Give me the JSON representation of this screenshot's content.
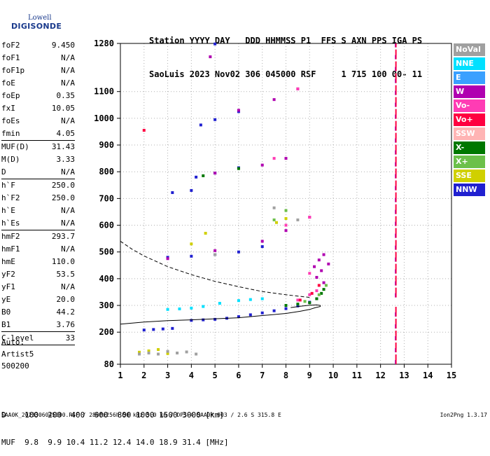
{
  "logo": {
    "line1": "Lowell",
    "line2": "DIGISONDE"
  },
  "header": {
    "line1": "Station YYYY DAY   DDD HHMMSS P1  FFS S AXN PPS IGA PS",
    "line2": "SaoLuis 2023 Nov02 306 045000 RSF     1 715 100 00- 11"
  },
  "params": [
    {
      "name": "foF2",
      "value": "9.450"
    },
    {
      "name": "foF1",
      "value": "N/A"
    },
    {
      "name": "foF1p",
      "value": "N/A"
    },
    {
      "name": "foE",
      "value": "N/A"
    },
    {
      "name": "foEp",
      "value": "0.35"
    },
    {
      "name": "fxI",
      "value": "10.05"
    },
    {
      "name": "foEs",
      "value": "N/A"
    },
    {
      "name": "fmin",
      "value": "4.05"
    },
    {
      "name": "MUF(D)",
      "value": "31.43"
    },
    {
      "name": "M(D)",
      "value": "3.33"
    },
    {
      "name": "D",
      "value": "N/A"
    },
    {
      "name": "h`F",
      "value": "250.0"
    },
    {
      "name": "h`F2",
      "value": "250.0"
    },
    {
      "name": "h`E",
      "value": "N/A"
    },
    {
      "name": "h`Es",
      "value": "N/A"
    },
    {
      "name": "hmF2",
      "value": "293.7"
    },
    {
      "name": "hmF1",
      "value": "N/A"
    },
    {
      "name": "hmE",
      "value": "110.0"
    },
    {
      "name": "yF2",
      "value": "53.5"
    },
    {
      "name": "yF1",
      "value": "N/A"
    },
    {
      "name": "yE",
      "value": "20.0"
    },
    {
      "name": "B0",
      "value": "44.2"
    },
    {
      "name": "B1",
      "value": "3.76"
    },
    {
      "name": "C-level",
      "value": "33"
    }
  ],
  "artist": {
    "line1": "Auto:",
    "line2": "Artist5",
    "line3": "500200"
  },
  "muf_table": {
    "line1": "D    100  200  400  600  800 1000 1500 3000 [km]",
    "line2": "MUF  9.8  9.9 10.4 11.2 12.4 14.0 18.9 31.4 [MHz]"
  },
  "footer": {
    "left": "SAA0K_2023306045000.RSF / 280fx256h 50 kHz 5.0 km / DPS-4 SAA0K 903 / 2.6 S 315.8 E",
    "right": "Ion2Png 1.3.17"
  },
  "legend": [
    {
      "label": "NoVal",
      "color": "#a0a0a0"
    },
    {
      "label": "NNE",
      "color": "#00e0ff"
    },
    {
      "label": "E",
      "color": "#3aa0ff"
    },
    {
      "label": "W",
      "color": "#b000b0"
    },
    {
      "label": "Vo-",
      "color": "#ff3cb4"
    },
    {
      "label": "Vo+",
      "color": "#ff0040"
    },
    {
      "label": "SSW",
      "color": "#ffb4b4"
    },
    {
      "label": "X-",
      "color": "#007800"
    },
    {
      "label": "X+",
      "color": "#6cc04a"
    },
    {
      "label": "SSE",
      "color": "#d0d000"
    },
    {
      "label": "NNW",
      "color": "#2020d0"
    }
  ],
  "chart_data": {
    "type": "scatter",
    "x_ticks": [
      "1",
      "2",
      "3",
      "4",
      "5",
      "6",
      "7",
      "8",
      "9",
      "10",
      "11",
      "12",
      "13",
      "14",
      "15"
    ],
    "y_ticks": [
      "80",
      "200",
      "300",
      "400",
      "500",
      "600",
      "700",
      "800",
      "900",
      "1000",
      "1100",
      "1280"
    ],
    "xlim": [
      1,
      15
    ],
    "ylim": [
      80,
      1280
    ],
    "series": [
      {
        "color": "#2020d0",
        "points": [
          [
            2.0,
            208
          ],
          [
            2.4,
            210
          ],
          [
            2.8,
            212
          ],
          [
            3.2,
            214
          ],
          [
            4.0,
            244
          ],
          [
            4.5,
            246
          ],
          [
            5.0,
            248
          ],
          [
            5.5,
            252
          ],
          [
            6.0,
            258
          ],
          [
            6.5,
            265
          ],
          [
            7.0,
            272
          ],
          [
            7.5,
            280
          ],
          [
            8.0,
            288
          ],
          [
            8.5,
            298
          ],
          [
            9.0,
            312
          ],
          [
            9.3,
            325
          ],
          [
            3.0,
            480
          ],
          [
            4.0,
            484
          ],
          [
            5.0,
            490
          ],
          [
            6.0,
            500
          ],
          [
            7.0,
            520
          ],
          [
            3.2,
            722
          ],
          [
            4.0,
            730
          ],
          [
            4.2,
            780
          ],
          [
            5.0,
            795
          ],
          [
            6.0,
            815
          ],
          [
            4.4,
            975
          ],
          [
            5.0,
            995
          ],
          [
            6.0,
            1025
          ],
          [
            5.0,
            1278
          ]
        ]
      },
      {
        "color": "#b000b0",
        "points": [
          [
            9.2,
            445
          ],
          [
            9.4,
            470
          ],
          [
            9.6,
            490
          ],
          [
            9.8,
            455
          ],
          [
            9.5,
            430
          ],
          [
            9.3,
            405
          ],
          [
            9.6,
            385
          ],
          [
            3.0,
            475
          ],
          [
            5.0,
            505
          ],
          [
            7.0,
            540
          ],
          [
            8.0,
            580
          ],
          [
            9.0,
            630
          ],
          [
            5.0,
            795
          ],
          [
            7.0,
            825
          ],
          [
            8.0,
            850
          ],
          [
            6.0,
            1030
          ],
          [
            7.5,
            1070
          ],
          [
            8.5,
            1110
          ],
          [
            4.8,
            1230
          ]
        ]
      },
      {
        "color": "#ff3cb4",
        "points": [
          [
            8.5,
            320
          ],
          [
            9.0,
            340
          ],
          [
            9.3,
            355
          ],
          [
            9.0,
            420
          ],
          [
            8.0,
            600
          ],
          [
            9.0,
            630
          ],
          [
            7.5,
            850
          ],
          [
            8.5,
            1110
          ]
        ]
      },
      {
        "color": "#007800",
        "points": [
          [
            8.0,
            300
          ],
          [
            8.5,
            305
          ],
          [
            9.0,
            310
          ],
          [
            9.3,
            325
          ],
          [
            9.5,
            345
          ],
          [
            9.6,
            360
          ],
          [
            4.5,
            785
          ],
          [
            6.0,
            812
          ]
        ]
      },
      {
        "color": "#6cc04a",
        "points": [
          [
            8.8,
            315
          ],
          [
            9.4,
            340
          ],
          [
            9.7,
            375
          ],
          [
            7.5,
            620
          ],
          [
            8.0,
            655
          ]
        ]
      },
      {
        "color": "#00e0ff",
        "points": [
          [
            3.0,
            285
          ],
          [
            3.5,
            287
          ],
          [
            4.0,
            290
          ],
          [
            4.5,
            296
          ],
          [
            5.2,
            308
          ],
          [
            6.0,
            318
          ],
          [
            6.5,
            322
          ],
          [
            7.0,
            325
          ]
        ]
      },
      {
        "color": "#d0d000",
        "points": [
          [
            1.8,
            125
          ],
          [
            2.2,
            130
          ],
          [
            2.6,
            135
          ],
          [
            3.0,
            120
          ],
          [
            7.6,
            610
          ],
          [
            8.0,
            625
          ],
          [
            4.0,
            530
          ],
          [
            4.6,
            570
          ]
        ]
      },
      {
        "color": "#a0a0a0",
        "points": [
          [
            1.8,
            118
          ],
          [
            2.2,
            122
          ],
          [
            2.6,
            118
          ],
          [
            3.0,
            128
          ],
          [
            3.4,
            122
          ],
          [
            3.8,
            126
          ],
          [
            4.2,
            118
          ],
          [
            5.0,
            490
          ],
          [
            8.5,
            620
          ],
          [
            7.5,
            665
          ]
        ]
      },
      {
        "color": "#ff0040",
        "points": [
          [
            8.6,
            320
          ],
          [
            9.1,
            345
          ],
          [
            9.4,
            375
          ],
          [
            2.0,
            955
          ]
        ]
      }
    ],
    "curves": [
      {
        "style": "solid",
        "points": [
          [
            1.0,
            230
          ],
          [
            2.0,
            238
          ],
          [
            3.0,
            243
          ],
          [
            4.0,
            246
          ],
          [
            5.0,
            250
          ],
          [
            6.0,
            254
          ],
          [
            7.0,
            262
          ],
          [
            8.0,
            270
          ],
          [
            8.6,
            278
          ],
          [
            9.0,
            285
          ],
          [
            9.25,
            292
          ],
          [
            9.45,
            296
          ],
          [
            9.45,
            300
          ],
          [
            9.3,
            302
          ],
          [
            9.0,
            301
          ],
          [
            8.6,
            297
          ],
          [
            8.2,
            292
          ]
        ]
      },
      {
        "style": "dashed",
        "points": [
          [
            1.0,
            540
          ],
          [
            1.5,
            510
          ],
          [
            2.0,
            485
          ],
          [
            3.0,
            445
          ],
          [
            4.0,
            415
          ],
          [
            5.0,
            390
          ],
          [
            6.0,
            370
          ],
          [
            7.0,
            352
          ],
          [
            8.0,
            340
          ],
          [
            8.6,
            334
          ],
          [
            9.0,
            330
          ]
        ]
      }
    ],
    "vertical_band": {
      "x": 12.65,
      "color_main": "#ff0040",
      "color_alt": "#b000b0",
      "ranges": [
        [
          80,
          300
        ],
        [
          330,
          1280
        ]
      ]
    }
  }
}
